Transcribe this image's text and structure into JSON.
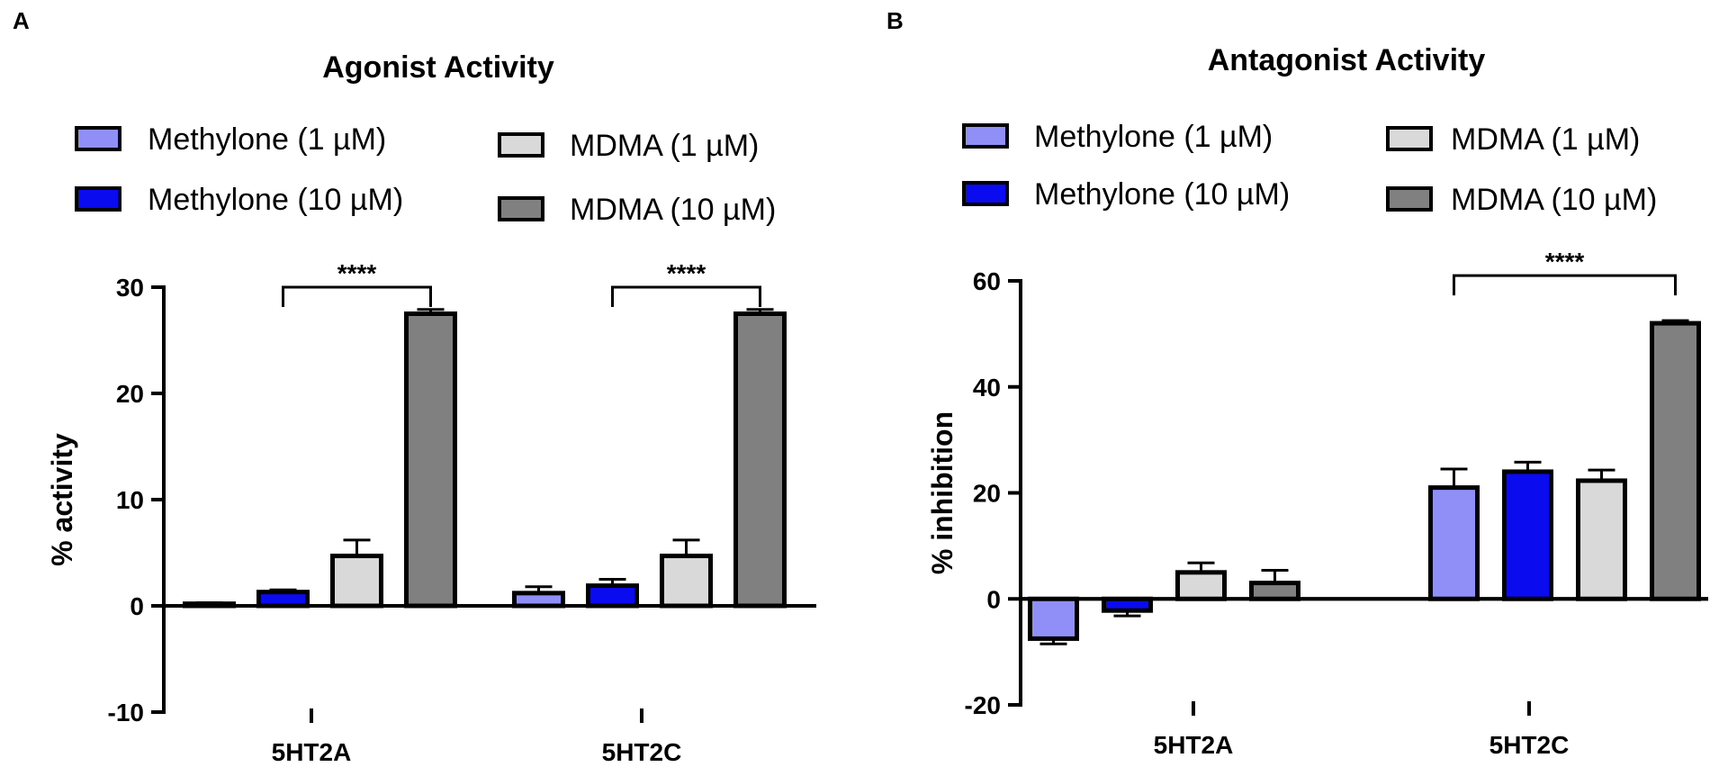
{
  "chart_data": [
    {
      "panel": "A",
      "type": "bar",
      "title": "Agonist Activity",
      "xlabel": "",
      "ylabel": "% activity",
      "ylim": [
        -10,
        30
      ],
      "yticks": [
        30,
        20,
        10,
        0,
        -10
      ],
      "categories": [
        "5HT2A",
        "5HT2C"
      ],
      "series": [
        {
          "name": "Methylone (1 µM)",
          "color": "#8f8ff7",
          "values": [
            0.2,
            1.2
          ],
          "errors": [
            0.1,
            0.6
          ]
        },
        {
          "name": "Methylone (10 µM)",
          "color": "#0b0bef",
          "values": [
            1.3,
            1.9
          ],
          "errors": [
            0.2,
            0.6
          ]
        },
        {
          "name": "MDMA (1 µM)",
          "color": "#d9d9d9",
          "values": [
            4.7,
            4.7
          ],
          "errors": [
            1.5,
            1.5
          ]
        },
        {
          "name": "MDMA (10 µM)",
          "color": "#808080",
          "values": [
            27.5,
            27.5
          ],
          "errors": [
            0.4,
            0.4
          ]
        }
      ],
      "significance": [
        {
          "category": "5HT2A",
          "from": 1,
          "to": 3,
          "label": "****",
          "level": 30
        },
        {
          "category": "5HT2C",
          "from": 1,
          "to": 3,
          "label": "****",
          "level": 30
        }
      ]
    },
    {
      "panel": "B",
      "type": "bar",
      "title": "Antagonist Activity",
      "xlabel": "",
      "ylabel": "% inhibition",
      "ylim": [
        -20,
        60
      ],
      "yticks": [
        60,
        40,
        20,
        0,
        -20
      ],
      "categories": [
        "5HT2A",
        "5HT2C"
      ],
      "series": [
        {
          "name": "Methylone (1 µM)",
          "color": "#8f8ff7",
          "values": [
            -7.5,
            21.0
          ],
          "errors": [
            1.0,
            3.5
          ]
        },
        {
          "name": "Methylone (10 µM)",
          "color": "#0b0bef",
          "values": [
            -2.2,
            24.0
          ],
          "errors": [
            1.0,
            1.8
          ]
        },
        {
          "name": "MDMA (1 µM)",
          "color": "#d9d9d9",
          "values": [
            5.0,
            22.3
          ],
          "errors": [
            1.8,
            2.0
          ]
        },
        {
          "name": "MDMA (10 µM)",
          "color": "#808080",
          "values": [
            3.0,
            52.0
          ],
          "errors": [
            2.4,
            0.5
          ]
        }
      ],
      "significance": [
        {
          "category": "5HT2C",
          "from": 0,
          "to": 3,
          "label": "****",
          "level": 61
        }
      ]
    }
  ]
}
